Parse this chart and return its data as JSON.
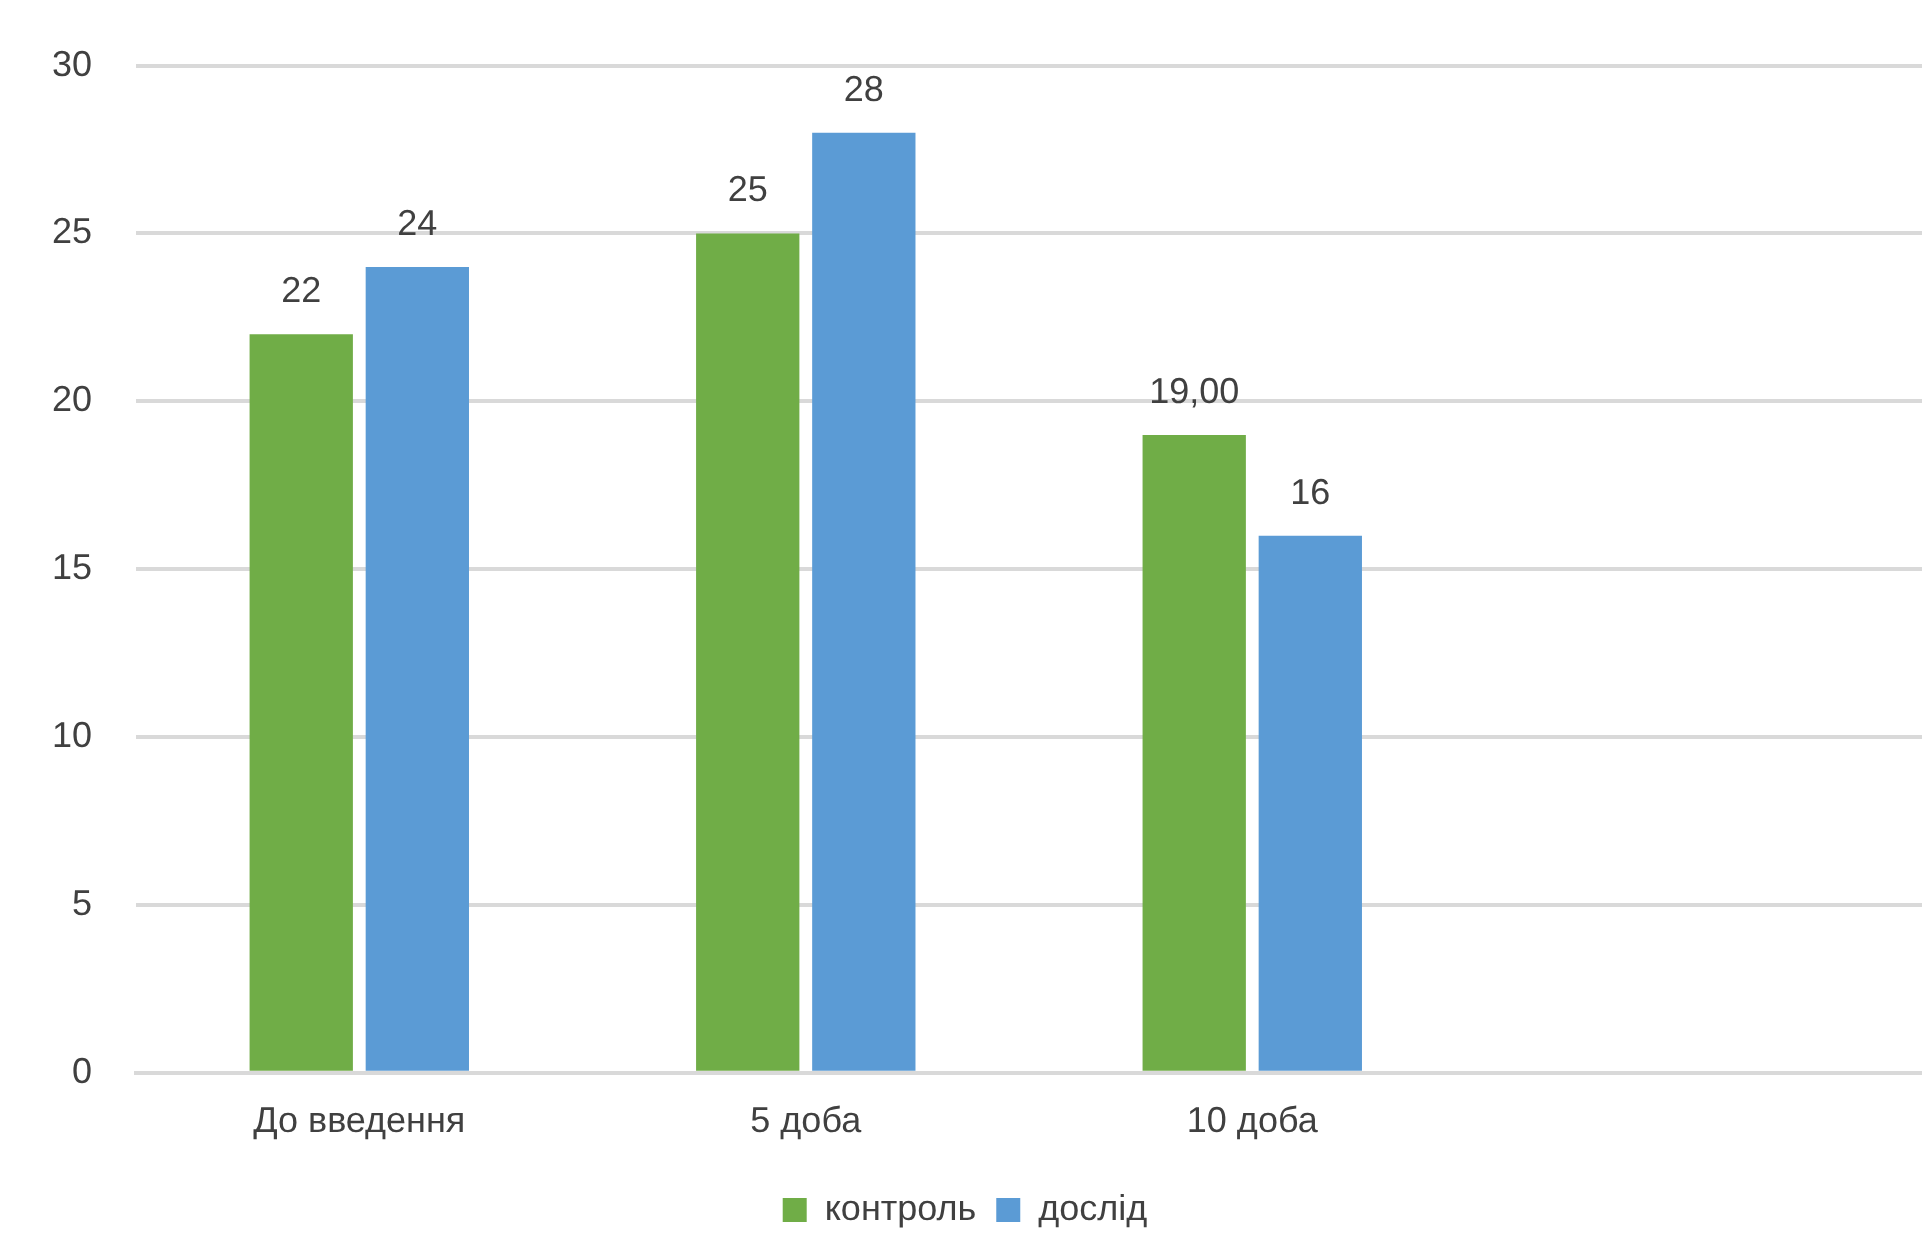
{
  "chart_data": {
    "type": "bar",
    "categories": [
      "До введення",
      "5 доба",
      "10 доба",
      null
    ],
    "series": [
      {
        "name": "контроль",
        "color": "#70ad47",
        "values": [
          22,
          25,
          19,
          null
        ],
        "value_labels": [
          "22",
          "25",
          "19,00",
          null
        ]
      },
      {
        "name": "дослід",
        "color": "#5b9bd5",
        "values": [
          24,
          28,
          16,
          null
        ],
        "value_labels": [
          "24",
          "28",
          "16",
          null
        ]
      }
    ],
    "ylim": [
      0,
      30
    ],
    "yticks": [
      0,
      5,
      10,
      15,
      20,
      25,
      30
    ],
    "grid": "y",
    "legend": "bottom"
  }
}
